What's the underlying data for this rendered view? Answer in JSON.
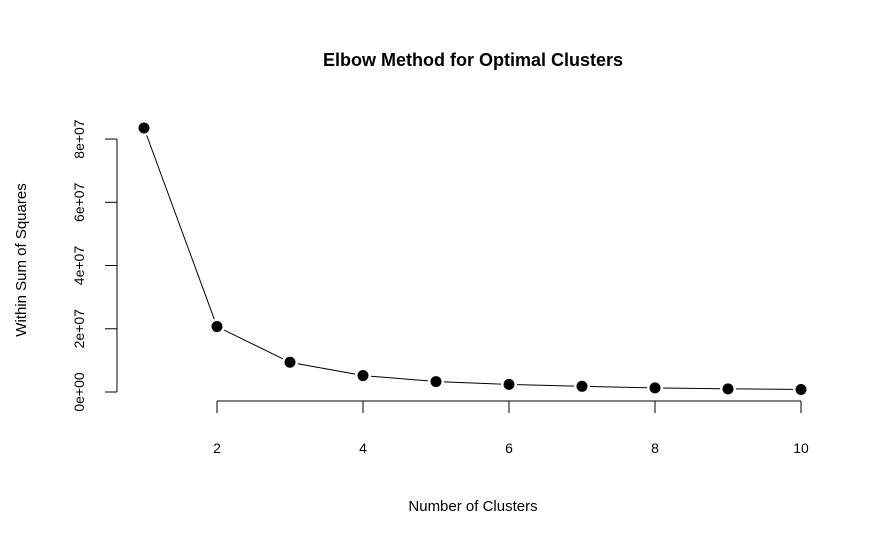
{
  "chart_data": {
    "type": "line",
    "title": "Elbow Method for Optimal Clusters",
    "xlabel": "Number of Clusters",
    "ylabel": "Within Sum of Squares",
    "x": [
      1,
      2,
      3,
      4,
      5,
      6,
      7,
      8,
      9,
      10
    ],
    "series": [
      {
        "values": [
          83500000,
          20700000,
          9400000,
          5200000,
          3300000,
          2400000,
          1800000,
          1300000,
          1000000,
          800000
        ]
      }
    ],
    "xlim": [
      1,
      10
    ],
    "ylim": [
      0,
      83500000
    ],
    "x_ticks": [
      2,
      4,
      6,
      8,
      10
    ],
    "x_tick_labels": [
      "2",
      "4",
      "6",
      "8",
      "10"
    ],
    "y_ticks": [
      0,
      20000000,
      40000000,
      60000000,
      80000000
    ],
    "y_tick_labels": [
      "0e+00",
      "2e+07",
      "4e+07",
      "6e+07",
      "8e+07"
    ],
    "grid": false,
    "line_color": "#000000",
    "point_color": "#000000"
  }
}
